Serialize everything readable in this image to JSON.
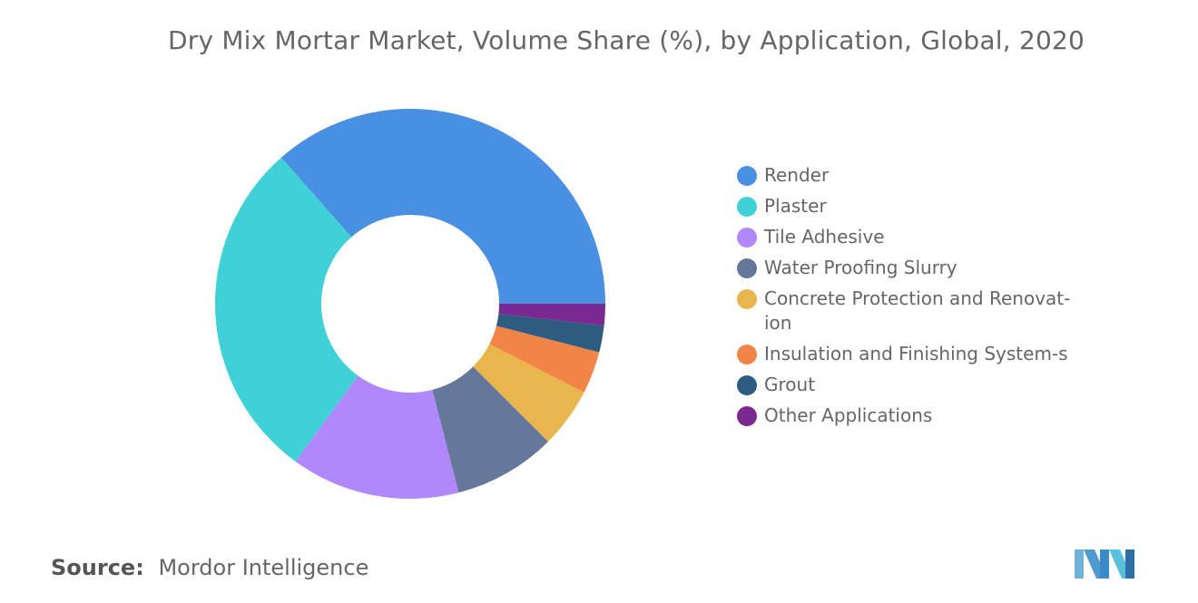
{
  "chart_data": {
    "type": "pie",
    "title": "Dry Mix Mortar Market, Volume Share (%), by Application, Global, 2020",
    "categories": [
      "Render",
      "Plaster",
      "Tile Adhesive",
      "Water Proofing Slurry",
      "Concrete Protection and Renovat-ion",
      "Insulation and Finishing System-s",
      "Grout",
      "Other Applications"
    ],
    "values": [
      36.5,
      28.5,
      14.0,
      8.5,
      5.0,
      3.5,
      2.2,
      1.8
    ],
    "colors": [
      "#4a90e2",
      "#3fd0d8",
      "#b188fb",
      "#65779b",
      "#ebb54e",
      "#f18447",
      "#2e5c80",
      "#7a2991"
    ],
    "legend_position": "right",
    "donut": true
  },
  "legend": {
    "items": [
      {
        "label": "Render",
        "color": "#4a90e2"
      },
      {
        "label": "Plaster",
        "color": "#3fd0d8"
      },
      {
        "label": "Tile Adhesive",
        "color": "#b188fb"
      },
      {
        "label": "Water Proofing Slurry",
        "color": "#65779b"
      },
      {
        "label": "Concrete Protection and Renovat-ion",
        "color": "#ebb54e"
      },
      {
        "label": "Insulation and Finishing System-s",
        "color": "#f18447"
      },
      {
        "label": "Grout",
        "color": "#2e5c80"
      },
      {
        "label": "Other Applications",
        "color": "#7a2991"
      }
    ]
  },
  "source": {
    "label": "Source:",
    "text": "Mordor Intelligence"
  },
  "logo": {
    "icon": "mordor-intelligence-logo-icon"
  }
}
